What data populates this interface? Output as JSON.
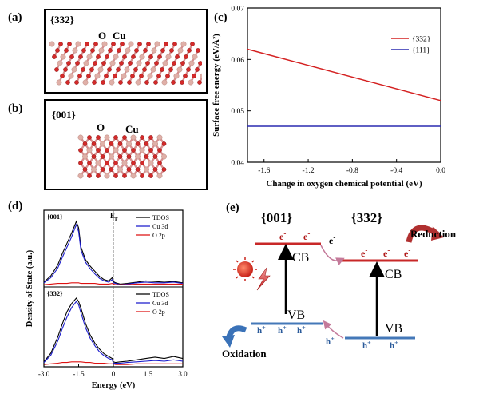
{
  "panels": {
    "a": {
      "label": "(a)",
      "facet": "{332}",
      "atom_o": "O",
      "atom_cu": "Cu"
    },
    "b": {
      "label": "(b)",
      "facet": "{001}",
      "atom_o": "O",
      "atom_cu": "Cu"
    },
    "c": {
      "label": "(c)"
    },
    "d": {
      "label": "(d)",
      "top_facet": "{001}",
      "bottom_facet": "{332}",
      "fermi_label": "E",
      "fermi_sub": "F"
    },
    "e": {
      "label": "(e)",
      "left_facet": "{001}",
      "right_facet": "{332}",
      "cb": "CB",
      "vb": "VB",
      "electron": "e",
      "electron_charge": "-",
      "hole": "h",
      "hole_charge": "+",
      "reduction": "Reduction",
      "oxidation": "Oxidation"
    }
  },
  "chart_data": [
    {
      "type": "line",
      "panel": "c",
      "xlabel": "Change in oxygen chemical potential (eV)",
      "ylabel": "Surface free energy (eV/Å²)",
      "xlim": [
        -1.75,
        0.0
      ],
      "ylim": [
        0.04,
        0.07
      ],
      "x_ticks": [
        -1.6,
        -1.2,
        -0.8,
        -0.4,
        0.0
      ],
      "x_tick_labels": [
        "-1.6",
        "-1.2",
        "-0.8",
        "-0.4",
        "0.0"
      ],
      "y_ticks": [
        0.04,
        0.05,
        0.06,
        0.07
      ],
      "y_tick_labels": [
        "0.04",
        "0.05",
        "0.06",
        "0.07"
      ],
      "legend_position": "top-right",
      "series": [
        {
          "name": "{332}",
          "color": "#d42020",
          "x": [
            -1.75,
            0.0
          ],
          "y": [
            0.062,
            0.052
          ]
        },
        {
          "name": "{111}",
          "color": "#2a2ab0",
          "x": [
            -1.75,
            0.0
          ],
          "y": [
            0.047,
            0.047
          ]
        }
      ]
    },
    {
      "type": "line",
      "panel": "d",
      "xlabel": "Energy (eV)",
      "ylabel": "Density of State (a.u.)",
      "xlim": [
        -3.0,
        3.0
      ],
      "x_ticks": [
        -3.0,
        -1.5,
        0,
        1.5,
        3.0
      ],
      "x_tick_labels": [
        "-3.0",
        "-1.5",
        "0",
        "1.5",
        "3.0"
      ],
      "legend_position": "top-right",
      "legend": [
        {
          "name": "TDOS",
          "color": "#000000"
        },
        {
          "name": "Cu 3d",
          "color": "#1a1acc"
        },
        {
          "name": "O 2p",
          "color": "#dd1111"
        }
      ],
      "subplots": [
        {
          "facet": "{001}",
          "x": [
            -3.0,
            -2.7,
            -2.4,
            -2.2,
            -2.0,
            -1.8,
            -1.6,
            -1.5,
            -1.4,
            -1.2,
            -1.0,
            -0.8,
            -0.6,
            -0.4,
            -0.2,
            -0.05,
            0.0,
            0.1,
            0.3,
            0.6,
            1.0,
            1.4,
            1.8,
            2.2,
            2.6,
            3.0
          ],
          "tdos": [
            0.05,
            0.15,
            0.32,
            0.5,
            0.66,
            0.82,
            1.0,
            0.9,
            0.6,
            0.4,
            0.3,
            0.22,
            0.14,
            0.09,
            0.07,
            0.12,
            0.06,
            0.04,
            0.02,
            0.03,
            0.05,
            0.07,
            0.06,
            0.05,
            0.06,
            0.04
          ],
          "cu3d": [
            0.04,
            0.12,
            0.27,
            0.44,
            0.6,
            0.76,
            0.95,
            0.84,
            0.55,
            0.36,
            0.26,
            0.18,
            0.11,
            0.07,
            0.05,
            0.09,
            0.04,
            0.03,
            0.01,
            0.02,
            0.04,
            0.05,
            0.04,
            0.04,
            0.05,
            0.03
          ],
          "o2p": [
            0.01,
            0.02,
            0.03,
            0.03,
            0.03,
            0.04,
            0.04,
            0.04,
            0.03,
            0.03,
            0.03,
            0.03,
            0.02,
            0.02,
            0.02,
            0.03,
            0.02,
            0.01,
            0.01,
            0.01,
            0.02,
            0.02,
            0.02,
            0.02,
            0.02,
            0.02
          ]
        },
        {
          "facet": "{332}",
          "x": [
            -3.0,
            -2.7,
            -2.4,
            -2.2,
            -2.0,
            -1.8,
            -1.6,
            -1.5,
            -1.4,
            -1.2,
            -1.0,
            -0.8,
            -0.6,
            -0.4,
            -0.2,
            -0.05,
            0.0,
            0.1,
            0.3,
            0.6,
            1.0,
            1.4,
            1.8,
            2.2,
            2.6,
            3.0
          ],
          "tdos": [
            0.05,
            0.18,
            0.42,
            0.62,
            0.8,
            0.92,
            1.0,
            0.95,
            0.85,
            0.62,
            0.45,
            0.33,
            0.24,
            0.17,
            0.13,
            0.1,
            0.05,
            0.04,
            0.05,
            0.06,
            0.08,
            0.1,
            0.12,
            0.1,
            0.13,
            0.1
          ],
          "cu3d": [
            0.04,
            0.15,
            0.36,
            0.55,
            0.72,
            0.86,
            0.95,
            0.9,
            0.78,
            0.56,
            0.4,
            0.29,
            0.2,
            0.14,
            0.1,
            0.08,
            0.03,
            0.03,
            0.03,
            0.04,
            0.05,
            0.06,
            0.07,
            0.06,
            0.08,
            0.06
          ],
          "o2p": [
            0.01,
            0.02,
            0.03,
            0.04,
            0.04,
            0.05,
            0.05,
            0.05,
            0.05,
            0.04,
            0.04,
            0.03,
            0.03,
            0.03,
            0.02,
            0.02,
            0.02,
            0.01,
            0.01,
            0.01,
            0.02,
            0.02,
            0.02,
            0.02,
            0.02,
            0.02
          ]
        }
      ]
    }
  ]
}
